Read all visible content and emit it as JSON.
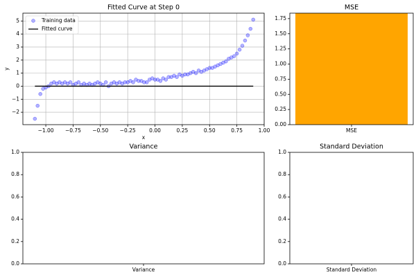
{
  "chart_data": [
    {
      "type": "scatter",
      "title": "Fitted Curve at Step 0",
      "xlabel": "x",
      "ylabel": "y",
      "grid": true,
      "legend": "upper left",
      "xlim": [
        -1.21,
        1.0
      ],
      "ylim": [
        -2.95,
        5.6
      ],
      "xticks": [
        {
          "value": -1.0,
          "label": "−1.00"
        },
        {
          "value": -0.75,
          "label": "−0.75"
        },
        {
          "value": -0.5,
          "label": "−0.50"
        },
        {
          "value": -0.25,
          "label": "−0.25"
        },
        {
          "value": 0,
          "label": "0.00"
        },
        {
          "value": 0.25,
          "label": "0.25"
        },
        {
          "value": 0.5,
          "label": "0.50"
        },
        {
          "value": 0.75,
          "label": "0.75"
        },
        {
          "value": 1.0,
          "label": "1.00"
        }
      ],
      "yticks": [
        {
          "value": -2,
          "label": "−2"
        },
        {
          "value": -1,
          "label": "−1"
        },
        0,
        1,
        2,
        3,
        4,
        5
      ],
      "series": [
        {
          "name": "Training data",
          "type": "scatter",
          "color": "#0000ff",
          "x": [
            -1.1,
            -1.075,
            -1.05,
            -1.025,
            -1.0,
            -0.975,
            -0.95,
            -0.925,
            -0.9,
            -0.875,
            -0.85,
            -0.825,
            -0.8,
            -0.775,
            -0.75,
            -0.725,
            -0.7,
            -0.675,
            -0.65,
            -0.625,
            -0.6,
            -0.575,
            -0.55,
            -0.525,
            -0.5,
            -0.475,
            -0.45,
            -0.425,
            -0.4,
            -0.375,
            -0.35,
            -0.325,
            -0.3,
            -0.275,
            -0.25,
            -0.225,
            -0.2,
            -0.175,
            -0.15,
            -0.125,
            -0.1,
            -0.075,
            -0.05,
            -0.025,
            0.0,
            0.025,
            0.05,
            0.075,
            0.1,
            0.125,
            0.15,
            0.175,
            0.2,
            0.225,
            0.25,
            0.275,
            0.3,
            0.325,
            0.35,
            0.375,
            0.4,
            0.425,
            0.45,
            0.475,
            0.5,
            0.525,
            0.55,
            0.575,
            0.6,
            0.625,
            0.65,
            0.675,
            0.7,
            0.725,
            0.75,
            0.775,
            0.8,
            0.825,
            0.85,
            0.875,
            0.9
          ],
          "values": [
            -2.5,
            -1.5,
            -0.6,
            -0.2,
            -0.1,
            0.0,
            0.2,
            0.3,
            0.2,
            0.3,
            0.2,
            0.3,
            0.2,
            0.3,
            0.1,
            0.2,
            0.3,
            0.1,
            0.2,
            0.1,
            0.2,
            0.1,
            0.2,
            0.3,
            0.2,
            0.1,
            0.3,
            0.0,
            0.2,
            0.3,
            0.2,
            0.3,
            0.2,
            0.3,
            0.3,
            0.4,
            0.3,
            0.5,
            0.4,
            0.4,
            0.3,
            0.3,
            0.5,
            0.6,
            0.5,
            0.5,
            0.4,
            0.6,
            0.5,
            0.7,
            0.7,
            0.8,
            0.7,
            0.9,
            0.8,
            0.9,
            0.9,
            1.0,
            1.1,
            1.0,
            1.2,
            1.1,
            1.2,
            1.3,
            1.4,
            1.4,
            1.5,
            1.6,
            1.7,
            1.8,
            1.9,
            2.1,
            2.2,
            2.3,
            2.5,
            2.8,
            3.1,
            3.5,
            3.9,
            4.4,
            5.1
          ]
        },
        {
          "name": "Fitted curve",
          "type": "line",
          "color": "#000000",
          "x": [
            -1.1,
            0.9
          ],
          "values": [
            0,
            0
          ]
        }
      ]
    },
    {
      "type": "bar",
      "title": "MSE",
      "categories": [
        "MSE"
      ],
      "values": [
        1.84
      ],
      "color": "#ffa500",
      "ylim": [
        0,
        1.84
      ],
      "yticks": [
        {
          "value": 0,
          "label": "0.00"
        },
        0.25,
        {
          "value": 0.5,
          "label": "0.50"
        },
        0.75,
        {
          "value": 1.0,
          "label": "1.00"
        },
        1.25,
        {
          "value": 1.5,
          "label": "1.50"
        },
        1.75
      ]
    },
    {
      "type": "bar",
      "title": "Variance",
      "categories": [
        "Variance"
      ],
      "values": [
        0
      ],
      "color": "#ffa500",
      "ylim": [
        0,
        1
      ],
      "yticks": [
        {
          "value": 0,
          "label": "0.0"
        },
        0.2,
        0.4,
        0.6,
        0.8,
        {
          "value": 1,
          "label": "1.0"
        }
      ]
    },
    {
      "type": "bar",
      "title": "Standard Deviation",
      "categories": [
        "Standard Deviation"
      ],
      "values": [
        0
      ],
      "color": "#ffa500",
      "ylim": [
        0,
        1
      ],
      "yticks": [
        {
          "value": 0,
          "label": "0.0"
        },
        0.2,
        0.4,
        0.6,
        0.8,
        {
          "value": 1,
          "label": "1.0"
        }
      ]
    }
  ]
}
